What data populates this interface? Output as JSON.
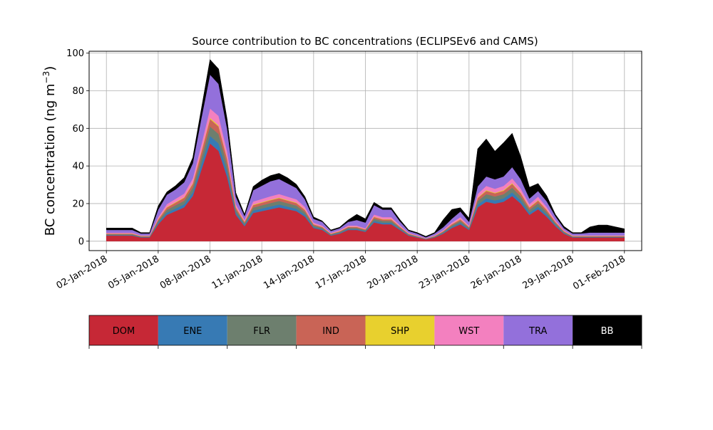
{
  "chart_data": {
    "type": "area",
    "stacked": true,
    "title": "Source contribution to BC concentrations (ECLIPSEv6 and CAMS)",
    "ylabel": "BC concentration (ng m",
    "ylabel_sup": "−3",
    "ylabel_close": ")",
    "xlabel": "",
    "xlim": [
      "2018-01-01",
      "2018-02-02"
    ],
    "ylim": [
      -5,
      101
    ],
    "yticks": [
      0,
      20,
      40,
      60,
      80,
      100
    ],
    "xtick_labels": [
      "02-Jan-2018",
      "05-Jan-2018",
      "08-Jan-2018",
      "11-Jan-2018",
      "14-Jan-2018",
      "17-Jan-2018",
      "20-Jan-2018",
      "23-Jan-2018",
      "26-Jan-2018",
      "29-Jan-2018",
      "01-Feb-2018"
    ],
    "xtick_dates": [
      "2018-01-02",
      "2018-01-05",
      "2018-01-08",
      "2018-01-11",
      "2018-01-14",
      "2018-01-17",
      "2018-01-20",
      "2018-01-23",
      "2018-01-26",
      "2018-01-29",
      "2018-02-01"
    ],
    "grid": true,
    "legend_placement": "bottom",
    "legend": [
      {
        "name": "DOM",
        "color": "#c62836",
        "text_color": "#000000"
      },
      {
        "name": "ENE",
        "color": "#377ab4",
        "text_color": "#000000"
      },
      {
        "name": "FLR",
        "color": "#6d7f6e",
        "text_color": "#000000"
      },
      {
        "name": "IND",
        "color": "#c96456",
        "text_color": "#000000"
      },
      {
        "name": "SHP",
        "color": "#e8d02e",
        "text_color": "#000000"
      },
      {
        "name": "WST",
        "color": "#f380bf",
        "text_color": "#000000"
      },
      {
        "name": "TRA",
        "color": "#9370db",
        "text_color": "#000000"
      },
      {
        "name": "BB",
        "color": "#000000",
        "text_color": "#ffffff"
      }
    ],
    "x": [
      "2018-01-02 00:00",
      "2018-01-02 12:00",
      "2018-01-03 00:00",
      "2018-01-03 12:00",
      "2018-01-04 00:00",
      "2018-01-04 12:00",
      "2018-01-05 00:00",
      "2018-01-05 12:00",
      "2018-01-06 00:00",
      "2018-01-06 12:00",
      "2018-01-07 00:00",
      "2018-01-07 12:00",
      "2018-01-08 00:00",
      "2018-01-08 12:00",
      "2018-01-09 00:00",
      "2018-01-09 12:00",
      "2018-01-10 00:00",
      "2018-01-10 12:00",
      "2018-01-11 00:00",
      "2018-01-11 12:00",
      "2018-01-12 00:00",
      "2018-01-12 12:00",
      "2018-01-13 00:00",
      "2018-01-13 12:00",
      "2018-01-14 00:00",
      "2018-01-14 12:00",
      "2018-01-15 00:00",
      "2018-01-15 12:00",
      "2018-01-16 00:00",
      "2018-01-16 12:00",
      "2018-01-17 00:00",
      "2018-01-17 12:00",
      "2018-01-18 00:00",
      "2018-01-18 12:00",
      "2018-01-19 00:00",
      "2018-01-19 12:00",
      "2018-01-20 00:00",
      "2018-01-20 12:00",
      "2018-01-21 00:00",
      "2018-01-21 12:00",
      "2018-01-22 00:00",
      "2018-01-22 12:00",
      "2018-01-23 00:00",
      "2018-01-23 12:00",
      "2018-01-24 00:00",
      "2018-01-24 12:00",
      "2018-01-25 00:00",
      "2018-01-25 12:00",
      "2018-01-26 00:00",
      "2018-01-26 12:00",
      "2018-01-27 00:00",
      "2018-01-27 12:00",
      "2018-01-28 00:00",
      "2018-01-28 12:00",
      "2018-01-29 00:00",
      "2018-01-29 12:00",
      "2018-01-30 00:00",
      "2018-01-30 12:00",
      "2018-01-31 00:00",
      "2018-01-31 12:00",
      "2018-02-01 00:00"
    ],
    "series": [
      {
        "name": "DOM",
        "values": [
          3,
          3,
          3,
          3,
          2,
          2,
          9,
          14,
          16,
          18,
          24,
          38,
          52,
          48,
          34,
          14,
          8,
          15,
          16,
          17,
          18,
          17,
          16,
          13,
          7,
          6,
          3,
          4,
          6,
          6,
          5,
          10,
          9,
          9,
          6,
          3,
          2,
          1,
          2,
          4,
          7,
          9,
          6,
          18,
          21,
          20,
          21,
          24,
          20,
          14,
          17,
          13,
          8,
          4,
          2,
          2,
          2,
          2,
          2,
          2,
          2
        ]
      },
      {
        "name": "ENE",
        "values": [
          0.3,
          0.3,
          0.3,
          0.3,
          0.2,
          0.2,
          0.8,
          1.2,
          1.4,
          1.6,
          2,
          3,
          4,
          4,
          3,
          1.2,
          0.7,
          1.3,
          1.4,
          1.5,
          1.5,
          1.4,
          1.3,
          1.1,
          0.6,
          0.5,
          0.3,
          0.4,
          0.5,
          0.5,
          0.4,
          0.9,
          0.8,
          0.8,
          0.5,
          0.3,
          0.2,
          0.1,
          0.2,
          0.4,
          0.6,
          0.8,
          0.5,
          1.5,
          1.8,
          1.7,
          1.8,
          2,
          1.7,
          1.2,
          1.4,
          1.1,
          0.7,
          0.4,
          0.2,
          0.2,
          0.2,
          0.2,
          0.2,
          0.2,
          0.2
        ]
      },
      {
        "name": "FLR",
        "values": [
          0.4,
          0.4,
          0.4,
          0.4,
          0.3,
          0.3,
          1,
          1.5,
          1.7,
          1.9,
          2.5,
          3.5,
          5,
          5,
          3.5,
          1.5,
          0.9,
          1.6,
          1.7,
          1.8,
          1.9,
          1.8,
          1.7,
          1.4,
          0.8,
          0.6,
          0.4,
          0.5,
          0.6,
          0.6,
          0.5,
          1.1,
          1,
          1,
          0.7,
          0.4,
          0.3,
          0.2,
          0.3,
          0.5,
          0.8,
          1,
          0.6,
          1.9,
          2.2,
          2.1,
          2.2,
          2.5,
          2.1,
          1.5,
          1.8,
          1.4,
          0.9,
          0.5,
          0.3,
          0.3,
          0.3,
          0.3,
          0.3,
          0.3,
          0.3
        ]
      },
      {
        "name": "IND",
        "values": [
          0.3,
          0.3,
          0.3,
          0.3,
          0.2,
          0.2,
          0.8,
          1.2,
          1.4,
          1.6,
          2,
          3,
          4,
          4,
          3,
          1.2,
          0.7,
          1.3,
          1.4,
          1.5,
          1.5,
          1.4,
          1.3,
          1.1,
          0.6,
          0.5,
          0.3,
          0.4,
          0.5,
          0.5,
          0.4,
          0.9,
          0.8,
          0.8,
          0.5,
          0.3,
          0.2,
          0.1,
          0.2,
          0.4,
          0.6,
          0.8,
          0.5,
          1.5,
          1.8,
          1.7,
          1.8,
          2,
          1.7,
          1.2,
          1.4,
          1.1,
          0.7,
          0.4,
          0.2,
          0.2,
          0.2,
          0.2,
          0.2,
          0.2,
          0.2
        ]
      },
      {
        "name": "SHP",
        "values": [
          0.1,
          0.1,
          0.1,
          0.1,
          0.1,
          0.1,
          0.2,
          0.3,
          0.3,
          0.3,
          0.4,
          0.5,
          0.6,
          0.6,
          0.5,
          0.3,
          0.2,
          0.3,
          0.3,
          0.3,
          0.3,
          0.3,
          0.3,
          0.2,
          0.1,
          0.1,
          0.1,
          0.1,
          0.1,
          0.1,
          0.1,
          0.2,
          0.2,
          0.2,
          0.1,
          0.1,
          0.1,
          0,
          0.1,
          0.1,
          0.1,
          0.2,
          0.1,
          0.3,
          0.4,
          0.3,
          0.4,
          0.4,
          0.3,
          0.3,
          0.3,
          0.2,
          0.1,
          0.1,
          0.1,
          0.1,
          0.1,
          0.1,
          0.1,
          0.1,
          0.1
        ]
      },
      {
        "name": "WST",
        "values": [
          0.4,
          0.4,
          0.4,
          0.4,
          0.3,
          0.3,
          1,
          1.5,
          1.7,
          1.9,
          2.5,
          3.5,
          5,
          5,
          3.5,
          1.5,
          0.9,
          1.6,
          1.7,
          1.8,
          1.9,
          1.8,
          1.7,
          1.4,
          0.8,
          0.6,
          0.4,
          0.5,
          0.6,
          0.6,
          0.5,
          1.1,
          1,
          1,
          0.7,
          0.4,
          0.3,
          0.2,
          0.3,
          0.5,
          0.8,
          1,
          0.6,
          1.9,
          2.2,
          2.1,
          2.2,
          2.5,
          2.1,
          1.5,
          1.8,
          1.4,
          0.9,
          0.5,
          0.3,
          0.3,
          0.3,
          0.3,
          0.3,
          0.3,
          0.3
        ]
      },
      {
        "name": "TRA",
        "values": [
          1.5,
          1.5,
          1.5,
          1.5,
          1,
          1,
          4,
          5,
          5,
          6,
          8,
          14,
          18,
          17,
          12,
          4,
          2,
          6,
          7,
          8,
          8,
          7,
          6,
          4,
          2,
          2,
          1,
          1,
          2,
          3,
          3,
          5,
          4,
          4,
          2,
          1,
          1,
          0.5,
          1,
          1.5,
          2,
          3,
          2,
          4,
          5,
          5,
          5,
          6,
          5,
          3,
          3,
          3,
          2,
          1,
          1,
          1,
          1.5,
          1.5,
          1.5,
          1.5,
          1.5
        ]
      },
      {
        "name": "BB",
        "values": [
          1,
          1,
          1,
          1,
          0.5,
          0.5,
          2,
          1.5,
          2,
          2.5,
          3,
          5,
          8,
          8,
          5,
          2,
          1,
          2,
          3,
          3,
          3,
          3,
          2,
          1.5,
          1,
          0.5,
          0.5,
          0.5,
          1,
          3,
          2,
          1.5,
          1,
          1,
          1,
          0.5,
          0.5,
          0.5,
          0.5,
          4,
          5,
          2,
          2,
          20,
          20,
          15,
          18,
          18,
          12,
          6,
          4,
          3,
          1,
          1,
          0.5,
          0.5,
          3,
          4,
          4,
          3,
          2
        ]
      }
    ]
  }
}
